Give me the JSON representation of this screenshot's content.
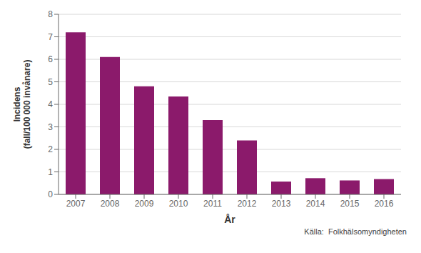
{
  "chart_data": {
    "type": "bar",
    "categories": [
      "2007",
      "2008",
      "2009",
      "2010",
      "2011",
      "2012",
      "2013",
      "2014",
      "2015",
      "2016"
    ],
    "values": [
      7.2,
      6.1,
      4.8,
      4.35,
      3.3,
      2.4,
      0.57,
      0.72,
      0.62,
      0.68
    ],
    "color": "#8b1a6b",
    "xlabel": "År",
    "ylabel": [
      "Incidens",
      "(fall/100 000 invånare)"
    ],
    "ylim": [
      0,
      8
    ],
    "yticks": [
      0,
      1,
      2,
      3,
      4,
      5,
      6,
      7,
      8
    ],
    "grid": true,
    "annotations": [
      "Källa:  Folkhälsomyndigheten"
    ]
  }
}
